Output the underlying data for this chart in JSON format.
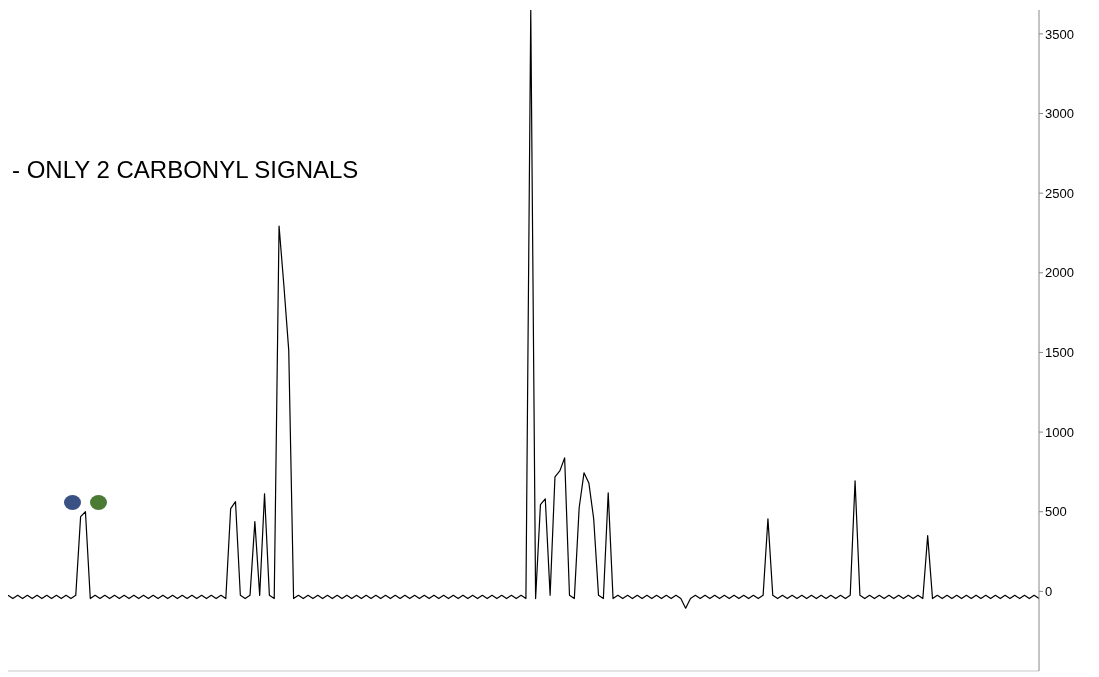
{
  "chart_data": {
    "type": "line",
    "annotations": [
      "- ONLY 2 CARBONYL SIGNALS"
    ],
    "categories": [
      null,
      null,
      null,
      null,
      null,
      null,
      null,
      null,
      null,
      null,
      null,
      null,
      null,
      null,
      null,
      null,
      null,
      null,
      null,
      null,
      null,
      null,
      null,
      null,
      null,
      null,
      null,
      null,
      null,
      null,
      null,
      null,
      null,
      null,
      null,
      null,
      null,
      null,
      null,
      null,
      null,
      null,
      null,
      null,
      null,
      null,
      null,
      null,
      null,
      null,
      null,
      null,
      null,
      null,
      null,
      null,
      null,
      null,
      null,
      null,
      null,
      null,
      null,
      null,
      null,
      null,
      null,
      null,
      null,
      null,
      null,
      null,
      null,
      null,
      null,
      null,
      null,
      null,
      null,
      null,
      null,
      null,
      null,
      null,
      null,
      null,
      null,
      null,
      null,
      null,
      null,
      null,
      null,
      null,
      null,
      null,
      null,
      null,
      null,
      null,
      null,
      null,
      null,
      null,
      null,
      null,
      null,
      null,
      null,
      null,
      null,
      null,
      null,
      null,
      null,
      null,
      null,
      null,
      null,
      null,
      null,
      null,
      null,
      null,
      null,
      null,
      null,
      null,
      null,
      null,
      null,
      null,
      null,
      null,
      null,
      null,
      null,
      null,
      null,
      null,
      null,
      null,
      null,
      null,
      null,
      null,
      null,
      null,
      null,
      null,
      null,
      null,
      null,
      null,
      null,
      null,
      null,
      null,
      null,
      null,
      null,
      null,
      null,
      null,
      null,
      null,
      null,
      null,
      null,
      null,
      null,
      null,
      null,
      null,
      null,
      null,
      null,
      null,
      null,
      null,
      null,
      null,
      null,
      null,
      null,
      null,
      null,
      null,
      null,
      null,
      null,
      null,
      null,
      null,
      null,
      null,
      null,
      null,
      null,
      null,
      null,
      null,
      null,
      null,
      null,
      null,
      null,
      null,
      null,
      null,
      null,
      null,
      null,
      null
    ],
    "series": [
      {
        "color": "#000000",
        "values": [
          -25,
          -45,
          -25,
          -45,
          -25,
          -45,
          -25,
          -45,
          -25,
          -45,
          -25,
          -45,
          -25,
          -45,
          -25,
          469,
          500,
          -45,
          -25,
          -45,
          -25,
          -45,
          -25,
          -45,
          -25,
          -45,
          -25,
          -45,
          -25,
          -45,
          -25,
          -45,
          -25,
          -45,
          -25,
          -45,
          -25,
          -45,
          -25,
          -45,
          -25,
          -45,
          -25,
          -45,
          -25,
          -45,
          519,
          563,
          -25,
          -45,
          -25,
          438,
          -25,
          613,
          -25,
          -45,
          2294,
          1919,
          1513,
          -45,
          -25,
          -45,
          -25,
          -45,
          -25,
          -45,
          -25,
          -45,
          -25,
          -45,
          -25,
          -45,
          -25,
          -45,
          -25,
          -45,
          -25,
          -45,
          -25,
          -45,
          -25,
          -45,
          -25,
          -45,
          -25,
          -45,
          -25,
          -45,
          -25,
          -45,
          -25,
          -45,
          -25,
          -45,
          -25,
          -45,
          -25,
          -45,
          -25,
          -45,
          -25,
          -45,
          -25,
          -45,
          -25,
          -45,
          -25,
          -45,
          3650,
          -45,
          544,
          581,
          -25,
          719,
          756,
          838,
          -25,
          -45,
          525,
          744,
          681,
          456,
          -25,
          -45,
          619,
          -45,
          -25,
          -45,
          -25,
          -45,
          -25,
          -45,
          -25,
          -45,
          -25,
          -45,
          -25,
          -45,
          -25,
          -45,
          -106,
          -45,
          -25,
          -45,
          -25,
          -45,
          -25,
          -45,
          -25,
          -45,
          -25,
          -45,
          -25,
          -45,
          -25,
          -45,
          -25,
          456,
          -25,
          -45,
          -25,
          -45,
          -25,
          -45,
          -25,
          -45,
          -25,
          -45,
          -25,
          -45,
          -25,
          -45,
          -25,
          -45,
          -25,
          694,
          -25,
          -45,
          -25,
          -45,
          -25,
          -45,
          -25,
          -45,
          -25,
          -45,
          -25,
          -45,
          -25,
          -45,
          350,
          -45,
          -25,
          -45,
          -25,
          -45,
          -25,
          -45,
          -25,
          -45,
          -25,
          -45,
          -25,
          -45,
          -25,
          -45,
          -25,
          -45,
          -25,
          -45,
          -25,
          -45,
          -25,
          -45
        ]
      }
    ],
    "ylim": [
      -500,
      3650
    ],
    "yticks": [
      0,
      500,
      1000,
      1500,
      2000,
      2500,
      3000,
      3500
    ],
    "tick_labels": "y",
    "grid": false,
    "legend": false,
    "marker": "none",
    "line_style": "solid"
  }
}
